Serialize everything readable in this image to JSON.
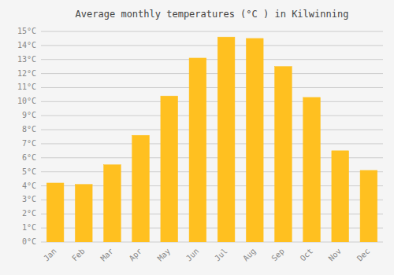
{
  "chart_data": {
    "type": "bar",
    "title": "Average monthly temperatures (°C ) in Kilwinning",
    "categories": [
      "Jan",
      "Feb",
      "Mar",
      "Apr",
      "May",
      "Jun",
      "Jul",
      "Aug",
      "Sep",
      "Oct",
      "Nov",
      "Dec"
    ],
    "values": [
      4.2,
      4.1,
      5.5,
      7.6,
      10.4,
      13.1,
      14.6,
      14.5,
      12.5,
      10.3,
      6.5,
      5.1
    ],
    "color": "#FFC020",
    "ylim": [
      0,
      15
    ],
    "yticks": [
      {
        "value": 0,
        "label": "0°C"
      },
      {
        "value": 1,
        "label": "1°C"
      },
      {
        "value": 2,
        "label": "2°C"
      },
      {
        "value": 3,
        "label": "3°C"
      },
      {
        "value": 4,
        "label": "4°C"
      },
      {
        "value": 5,
        "label": "5°C"
      },
      {
        "value": 6,
        "label": "6°C"
      },
      {
        "value": 7,
        "label": "7°C"
      },
      {
        "value": 8,
        "label": "8°C"
      },
      {
        "value": 9,
        "label": "9°C"
      },
      {
        "value": 10,
        "label": "10°C"
      },
      {
        "value": 11,
        "label": "11°C"
      },
      {
        "value": 12,
        "label": "12°C"
      },
      {
        "value": 13,
        "label": "13°C"
      },
      {
        "value": 14,
        "label": "14°C"
      },
      {
        "value": 15,
        "label": "15°C"
      }
    ],
    "grid": true
  }
}
